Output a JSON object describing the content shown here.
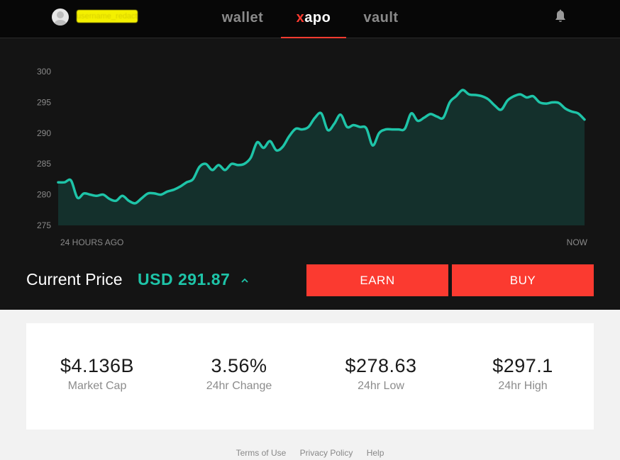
{
  "header": {
    "username": "username_redacted",
    "tabs": [
      {
        "label": "wallet",
        "active": false
      },
      {
        "label_x": "x",
        "label_rest": "apo",
        "active": true
      },
      {
        "label": "vault",
        "active": false
      }
    ],
    "icons": {
      "avatar": "user-avatar-icon",
      "notifications": "bell-icon"
    },
    "accent_color": "#ff3b30"
  },
  "chart_data": {
    "type": "area",
    "x_start_label": "24 HOURS AGO",
    "x_end_label": "NOW",
    "ylim": [
      275,
      300
    ],
    "yticks": [
      300,
      295,
      290,
      285,
      280,
      275
    ],
    "line_color": "#1ec4a8",
    "fill_color": "#14302c",
    "values": [
      282.0,
      282.0,
      282.3,
      279.5,
      280.2,
      280.0,
      279.8,
      280.0,
      279.3,
      279.0,
      279.8,
      279.0,
      278.6,
      279.4,
      280.2,
      280.2,
      280.0,
      280.5,
      280.8,
      281.3,
      282.0,
      282.5,
      284.5,
      285.0,
      284.0,
      284.8,
      284.0,
      285.0,
      284.8,
      285.0,
      286.0,
      288.5,
      287.6,
      288.7,
      287.2,
      287.8,
      289.5,
      290.7,
      290.6,
      291.0,
      292.5,
      293.2,
      290.5,
      291.5,
      293.0,
      291.0,
      291.3,
      291.0,
      290.8,
      288.0,
      290.0,
      290.6,
      290.6,
      290.6,
      290.7,
      293.2,
      292.0,
      292.5,
      293.1,
      292.7,
      292.5,
      295.0,
      296.0,
      297.0,
      296.3,
      296.2,
      296.0,
      295.5,
      294.5,
      293.8,
      295.3,
      296.0,
      296.3,
      295.8,
      296.0,
      295.0,
      294.8,
      295.0,
      294.9,
      294.0,
      293.5,
      293.2,
      292.2
    ]
  },
  "price": {
    "label": "Current Price",
    "value": "USD 291.87",
    "trend_icon": "caret-up-icon"
  },
  "actions": {
    "earn_label": "EARN",
    "buy_label": "BUY",
    "button_color": "#fb3a30"
  },
  "stats": [
    {
      "value": "$4.136B",
      "label": "Market Cap"
    },
    {
      "value": "3.56%",
      "label": "24hr Change"
    },
    {
      "value": "$278.63",
      "label": "24hr Low"
    },
    {
      "value": "$297.1",
      "label": "24hr High"
    }
  ],
  "footer": {
    "links": [
      "Terms of Use",
      "Privacy Policy",
      "Help"
    ]
  }
}
